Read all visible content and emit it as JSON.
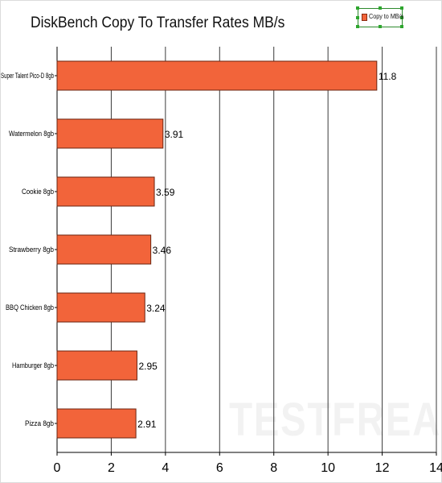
{
  "watermark": "TESTFREAKS",
  "chart_data": {
    "type": "bar",
    "orientation": "horizontal",
    "title": "DiskBench Copy To Transfer Rates MB/s",
    "xlabel": "",
    "ylabel": "",
    "categories": [
      "Super Talent Pico-D 8gb",
      "Watermelon 8gb",
      "Cookie 8gb",
      "Strawberry 8gb",
      "BBQ Chicken 8gb",
      "Hamburger 8gb",
      "Pizza 8gb"
    ],
    "series": [
      {
        "name": "Copy to MB/s",
        "values": [
          11.8,
          3.91,
          3.59,
          3.46,
          3.24,
          2.95,
          2.91
        ],
        "color": "#f2643a"
      }
    ],
    "data_labels": [
      "11.8",
      "3.91",
      "3.59",
      "3.46",
      "3.24",
      "2.95",
      "2.91"
    ],
    "xlim": [
      0,
      14
    ],
    "x_ticks": [
      0,
      2,
      4,
      6,
      8,
      10,
      12,
      14
    ],
    "grid": "vertical",
    "legend_position": "top-right"
  },
  "colors": {
    "bar_fill": "#f2643a",
    "bar_stroke": "#6b2410",
    "gridline": "#3a3a3a",
    "legend_border": "#2e8b2e"
  }
}
